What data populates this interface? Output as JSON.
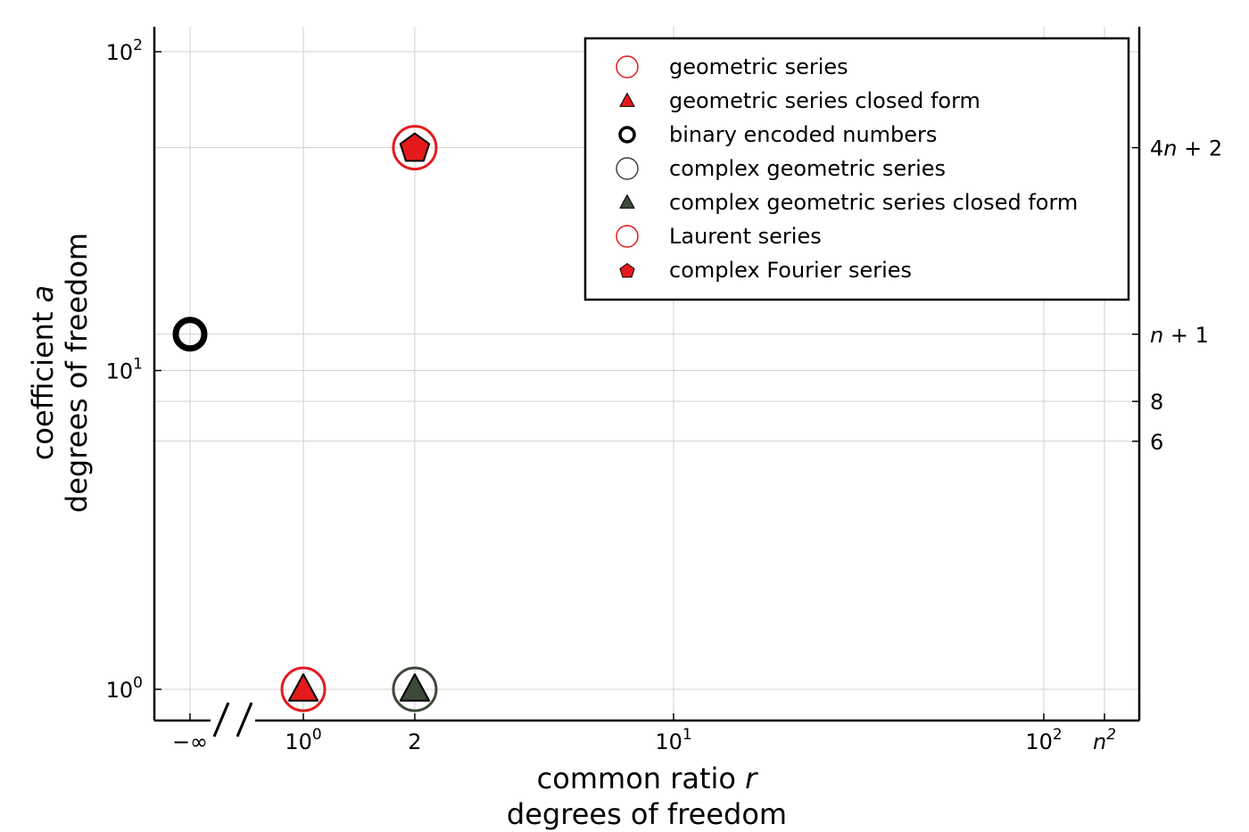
{
  "chart_data": {
    "type": "scatter",
    "xscale": "log",
    "yscale": "log",
    "grid": true,
    "legend_position": "top-right",
    "xlabel": [
      "common ratio ",
      "r",
      "degrees of freedom"
    ],
    "ylabel": [
      "coefficient ",
      "a",
      "degrees of freedom"
    ],
    "x_ticks": [
      {
        "value": "-inf",
        "base": "−∞"
      },
      {
        "value": 1,
        "base": "10",
        "sup": "0"
      },
      {
        "value": 2,
        "base": "2"
      },
      {
        "value": 10,
        "base": "10",
        "sup": "1"
      },
      {
        "value": 100,
        "base": "10",
        "sup": "2"
      },
      {
        "value": "n^2",
        "base": "n",
        "sup": "2",
        "italic": true
      }
    ],
    "y_ticks_left": [
      {
        "value": 1,
        "base": "10",
        "sup": "0"
      },
      {
        "value": 10,
        "base": "10",
        "sup": "1"
      },
      {
        "value": 100,
        "base": "10",
        "sup": "2"
      }
    ],
    "y_ticks_right": [
      {
        "value": 6,
        "parts": [
          [
            "6",
            false
          ]
        ]
      },
      {
        "value": 8,
        "parts": [
          [
            "8",
            false
          ]
        ]
      },
      {
        "value": "n+1",
        "parts": [
          [
            "n",
            true
          ],
          [
            " + 1",
            false
          ]
        ]
      },
      {
        "value": "4n+2",
        "parts": [
          [
            "4",
            false
          ],
          [
            "n",
            true
          ],
          [
            " + 2",
            false
          ]
        ]
      }
    ],
    "colors": {
      "red": "#e41a1c",
      "dark_green": "#3d4a3a",
      "black": "#000000",
      "grid": "#d0d0d0"
    },
    "series": [
      {
        "name": "geometric series",
        "marker": "circle-open",
        "color": "#e41a1c",
        "points": [
          {
            "x": 1,
            "y": 1
          }
        ]
      },
      {
        "name": "geometric series closed form",
        "marker": "triangle",
        "color": "#e41a1c",
        "points": [
          {
            "x": 1,
            "y": 1
          }
        ]
      },
      {
        "name": "binary encoded numbers",
        "marker": "circle-open-thick",
        "color": "#000000",
        "points": [
          {
            "x": "-inf",
            "y": "n+1"
          }
        ]
      },
      {
        "name": "complex geometric series",
        "marker": "circle-open",
        "color": "#3d4a3a",
        "points": [
          {
            "x": 2,
            "y": 1
          }
        ]
      },
      {
        "name": "complex geometric series closed form",
        "marker": "triangle",
        "color": "#3d4a3a",
        "points": [
          {
            "x": 2,
            "y": 1
          }
        ]
      },
      {
        "name": "Laurent series",
        "marker": "circle-open",
        "color": "#e41a1c",
        "points": [
          {
            "x": 2,
            "y": "4n+2"
          }
        ]
      },
      {
        "name": "complex Fourier series",
        "marker": "pentagon",
        "color": "#e41a1c",
        "points": [
          {
            "x": 2,
            "y": "4n+2"
          }
        ]
      }
    ]
  }
}
